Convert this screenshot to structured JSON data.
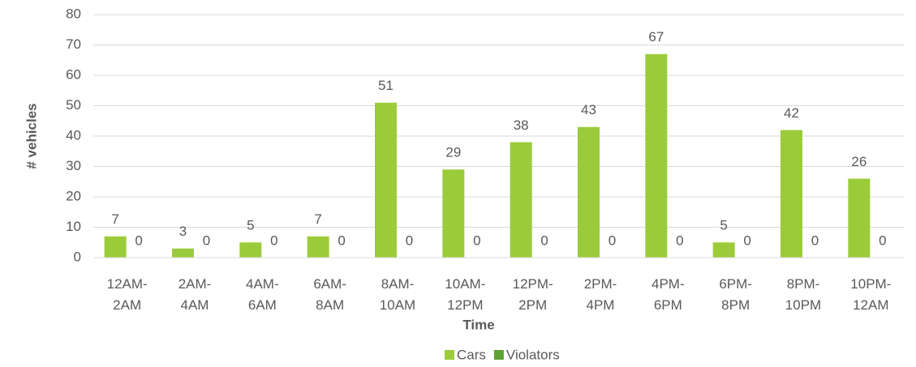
{
  "chart_data": {
    "type": "bar",
    "x_label": "Time",
    "y_label": "# vehicles",
    "categories": [
      "12AM-2AM",
      "2AM-4AM",
      "4AM-6AM",
      "6AM-8AM",
      "8AM-10AM",
      "10AM-12PM",
      "12PM-2PM",
      "2PM-4PM",
      "4PM-6PM",
      "6PM-8PM",
      "8PM-10PM",
      "10PM-12AM"
    ],
    "series": [
      {
        "name": "Cars",
        "color": "#9bcb3b",
        "values": [
          7,
          3,
          5,
          7,
          51,
          29,
          38,
          43,
          67,
          5,
          42,
          26
        ]
      },
      {
        "name": "Violators",
        "color": "#5fa332",
        "values": [
          0,
          0,
          0,
          0,
          0,
          0,
          0,
          0,
          0,
          0,
          0,
          0
        ]
      }
    ],
    "ylim": [
      0,
      80
    ],
    "yticks": [
      0,
      10,
      20,
      30,
      40,
      50,
      60,
      70,
      80
    ],
    "grid": true,
    "legend": "bottom"
  }
}
